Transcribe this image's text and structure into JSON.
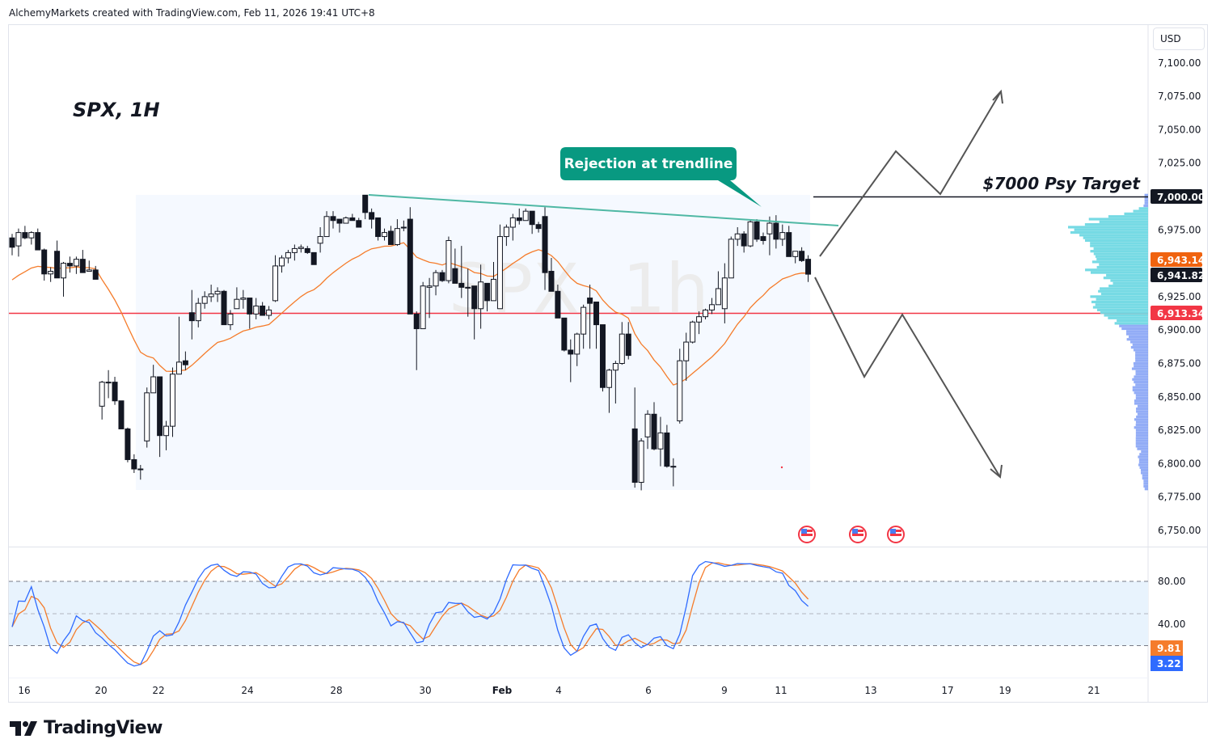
{
  "header": {
    "credit": "AlchemyMarkets created with TradingView.com, Feb 11, 2026 19:41 UTC+8"
  },
  "brand": {
    "logo_text": "TradingView"
  },
  "colors": {
    "ema": "#f57c2b",
    "stoch_k": "#2f6bff",
    "stoch_d": "#f57c2b",
    "trendline": "#4fb8a4",
    "callout": "#089981",
    "support": "#f23645",
    "range_box": "#f5f9ff",
    "stoch_band": "#e8f3fd",
    "profile_value_area": "#6fd8e3",
    "profile_outside": "#7f9ef5"
  },
  "chart_data": {
    "type": "candlestick",
    "symbol_label": "SPX, 1H",
    "watermark": "SPX, 1h",
    "currency": "USD",
    "ylim": [
      6735,
      7120
    ],
    "price_ticks": [
      "7,100.00",
      "7,075.00",
      "7,050.00",
      "7,025.00",
      "6,975.00",
      "6,925.00",
      "6,900.00",
      "6,875.00",
      "6,850.00",
      "6,825.00",
      "6,800.00",
      "6,775.00",
      "6,750.00"
    ],
    "date_ticks": [
      "16",
      "20",
      "22",
      "24",
      "28",
      "30",
      "Feb",
      "4",
      "6",
      "9",
      "11",
      "13",
      "17",
      "19",
      "21"
    ],
    "candles_ohlc": [
      [
        6969,
        6972,
        6956,
        6962
      ],
      [
        6963,
        6976,
        6955,
        6973
      ],
      [
        6973,
        6978,
        6968,
        6969
      ],
      [
        6969,
        6974,
        6964,
        6973
      ],
      [
        6973,
        6976,
        6960,
        6960
      ],
      [
        6960,
        6961,
        6937,
        6942
      ],
      [
        6942,
        6947,
        6936,
        6944
      ],
      [
        6959,
        6967,
        6939,
        6939
      ],
      [
        6939,
        6951,
        6925,
        6950
      ],
      [
        6950,
        6955,
        6943,
        6948
      ],
      [
        6948,
        6955,
        6942,
        6953
      ],
      [
        6953,
        6960,
        6943,
        6943
      ],
      [
        6944,
        6952,
        6944,
        6945
      ],
      [
        6945,
        6948,
        6938,
        6938
      ],
      [
        6843,
        6862,
        6833,
        6861
      ],
      [
        6861,
        6870,
        6849,
        6861
      ],
      [
        6861,
        6865,
        6844,
        6847
      ],
      [
        6847,
        6847,
        6826,
        6826
      ],
      [
        6826,
        6827,
        6801,
        6803
      ],
      [
        6803,
        6807,
        6793,
        6796
      ],
      [
        6796,
        6799,
        6788,
        6796
      ],
      [
        6817,
        6857,
        6812,
        6853
      ],
      [
        6853,
        6874,
        6853,
        6865
      ],
      [
        6865,
        6865,
        6805,
        6821
      ],
      [
        6821,
        6832,
        6810,
        6828
      ],
      [
        6828,
        6872,
        6820,
        6867
      ],
      [
        6867,
        6910,
        6867,
        6876
      ],
      [
        6877,
        6884,
        6870,
        6874
      ],
      [
        6913,
        6930,
        6893,
        6907
      ],
      [
        6907,
        6924,
        6902,
        6920
      ],
      [
        6920,
        6929,
        6916,
        6925
      ],
      [
        6925,
        6934,
        6921,
        6927
      ],
      [
        6927,
        6932,
        6921,
        6929
      ],
      [
        6929,
        6930,
        6904,
        6904
      ],
      [
        6904,
        6915,
        6900,
        6912
      ],
      [
        6916,
        6932,
        6916,
        6923
      ],
      [
        6923,
        6930,
        6916,
        6924
      ],
      [
        6924,
        6924,
        6901,
        6912
      ],
      [
        6912,
        6924,
        6908,
        6918
      ],
      [
        6918,
        6921,
        6911,
        6911
      ],
      [
        6911,
        6918,
        6908,
        6915
      ],
      [
        6922,
        6956,
        6921,
        6948
      ],
      [
        6948,
        6956,
        6943,
        6954
      ],
      [
        6954,
        6960,
        6950,
        6958
      ],
      [
        6958,
        6964,
        6952,
        6961
      ],
      [
        6961,
        6964,
        6958,
        6962
      ],
      [
        6961,
        6963,
        6957,
        6958
      ],
      [
        6958,
        6958,
        6949,
        6949
      ],
      [
        6965,
        6977,
        6958,
        6970
      ],
      [
        6970,
        6989,
        6970,
        6985
      ],
      [
        6985,
        6989,
        6976,
        6982
      ],
      [
        6983,
        6983,
        6973,
        6980
      ],
      [
        6980,
        6985,
        6980,
        6984
      ],
      [
        6984,
        6987,
        6982,
        6982
      ],
      [
        6982,
        6984,
        6977,
        6977
      ],
      [
        7001,
        7001,
        6983,
        6988
      ],
      [
        6988,
        6991,
        6976,
        6983
      ],
      [
        6984,
        6984,
        6967,
        6970
      ],
      [
        6970,
        6976,
        6967,
        6973
      ],
      [
        6974,
        6978,
        6964,
        6964
      ],
      [
        6964,
        6983,
        6963,
        6976
      ],
      [
        6977,
        6982,
        6974,
        6977
      ],
      [
        6983,
        6992,
        6912,
        6912
      ],
      [
        6912,
        6914,
        6870,
        6901
      ],
      [
        6901,
        6936,
        6901,
        6933
      ],
      [
        6932,
        6939,
        6909,
        6933
      ],
      [
        6933,
        6945,
        6926,
        6943
      ],
      [
        6943,
        6945,
        6936,
        6937
      ],
      [
        6937,
        6970,
        6935,
        6967
      ],
      [
        6946,
        6961,
        6935,
        6935
      ],
      [
        6935,
        6963,
        6924,
        6932
      ],
      [
        6932,
        6946,
        6910,
        6932
      ],
      [
        6933,
        6933,
        6893,
        6916
      ],
      [
        6916,
        6949,
        6901,
        6936
      ],
      [
        6935,
        6935,
        6914,
        6922
      ],
      [
        6922,
        6951,
        6922,
        6938
      ],
      [
        6916,
        6979,
        6916,
        6970
      ],
      [
        6970,
        6979,
        6963,
        6977
      ],
      [
        6977,
        6987,
        6967,
        6984
      ],
      [
        6984,
        6991,
        6979,
        6982
      ],
      [
        6982,
        6991,
        6982,
        6989
      ],
      [
        6989,
        6989,
        6972,
        6979
      ],
      [
        6979,
        6981,
        6973,
        6976
      ],
      [
        6985,
        6992,
        6930,
        6943
      ],
      [
        6944,
        6954,
        6929,
        6929
      ],
      [
        6929,
        6934,
        6909,
        6909
      ],
      [
        6909,
        6909,
        6884,
        6885
      ],
      [
        6885,
        6893,
        6861,
        6882
      ],
      [
        6882,
        6898,
        6873,
        6897
      ],
      [
        6897,
        6919,
        6886,
        6917
      ],
      [
        6924,
        6934,
        6886,
        6920
      ],
      [
        6921,
        6921,
        6886,
        6904
      ],
      [
        6904,
        6904,
        6854,
        6857
      ],
      [
        6857,
        6871,
        6838,
        6870
      ],
      [
        6870,
        6877,
        6845,
        6875
      ],
      [
        6875,
        6906,
        6874,
        6897
      ],
      [
        6897,
        6906,
        6878,
        6881
      ],
      [
        6826,
        6857,
        6782,
        6786
      ],
      [
        6786,
        6819,
        6780,
        6817
      ],
      [
        6820,
        6840,
        6811,
        6837
      ],
      [
        6837,
        6846,
        6810,
        6811
      ],
      [
        6811,
        6835,
        6798,
        6823
      ],
      [
        6823,
        6829,
        6797,
        6798
      ],
      [
        6798,
        6804,
        6783,
        6798
      ],
      [
        6832,
        6886,
        6830,
        6877
      ],
      [
        6877,
        6898,
        6862,
        6891
      ],
      [
        6891,
        6907,
        6890,
        6906
      ],
      [
        6906,
        6914,
        6897,
        6910
      ],
      [
        6910,
        6916,
        6908,
        6915
      ],
      [
        6915,
        6924,
        6912,
        6919
      ],
      [
        6919,
        6944,
        6919,
        6931
      ],
      [
        6916,
        6950,
        6905,
        6939
      ],
      [
        6939,
        6970,
        6939,
        6968
      ],
      [
        6968,
        6977,
        6963,
        6972
      ],
      [
        6972,
        6974,
        6958,
        6963
      ],
      [
        6963,
        6983,
        6962,
        6981
      ],
      [
        6981,
        6983,
        6966,
        6968
      ],
      [
        6970,
        6973,
        6964,
        6967
      ],
      [
        6972,
        6985,
        6956,
        6980
      ],
      [
        6980,
        6986,
        6961,
        6968
      ],
      [
        6968,
        6979,
        6963,
        6973
      ],
      [
        6973,
        6978,
        6955,
        6955
      ],
      [
        6955,
        6959,
        6950,
        6959
      ],
      [
        6959,
        6962,
        6951,
        6952
      ],
      [
        6953,
        6956,
        6936,
        6941.82
      ]
    ],
    "levels": {
      "target": {
        "value": 7000,
        "axis_label": "7,000.00",
        "text": "$7000 Psy Target"
      },
      "support": {
        "value": 6913.34,
        "axis_label": "6,913.34"
      }
    },
    "last_price": {
      "value": 6941.82,
      "axis_label": "6,941.82"
    },
    "ema_last": {
      "value": 6943.14,
      "axis_label": "6,943.14"
    },
    "callout": "Rejection at trendline",
    "oscillator": {
      "type": "stochastic",
      "ticks": [
        "80.00",
        "40.00"
      ],
      "bands": [
        20,
        50,
        80
      ],
      "ylim": [
        0,
        100
      ],
      "d_last": "9.81",
      "k_last": "3.22"
    },
    "events": [
      "us-economic-event",
      "us-economic-event",
      "us-economic-event"
    ]
  }
}
